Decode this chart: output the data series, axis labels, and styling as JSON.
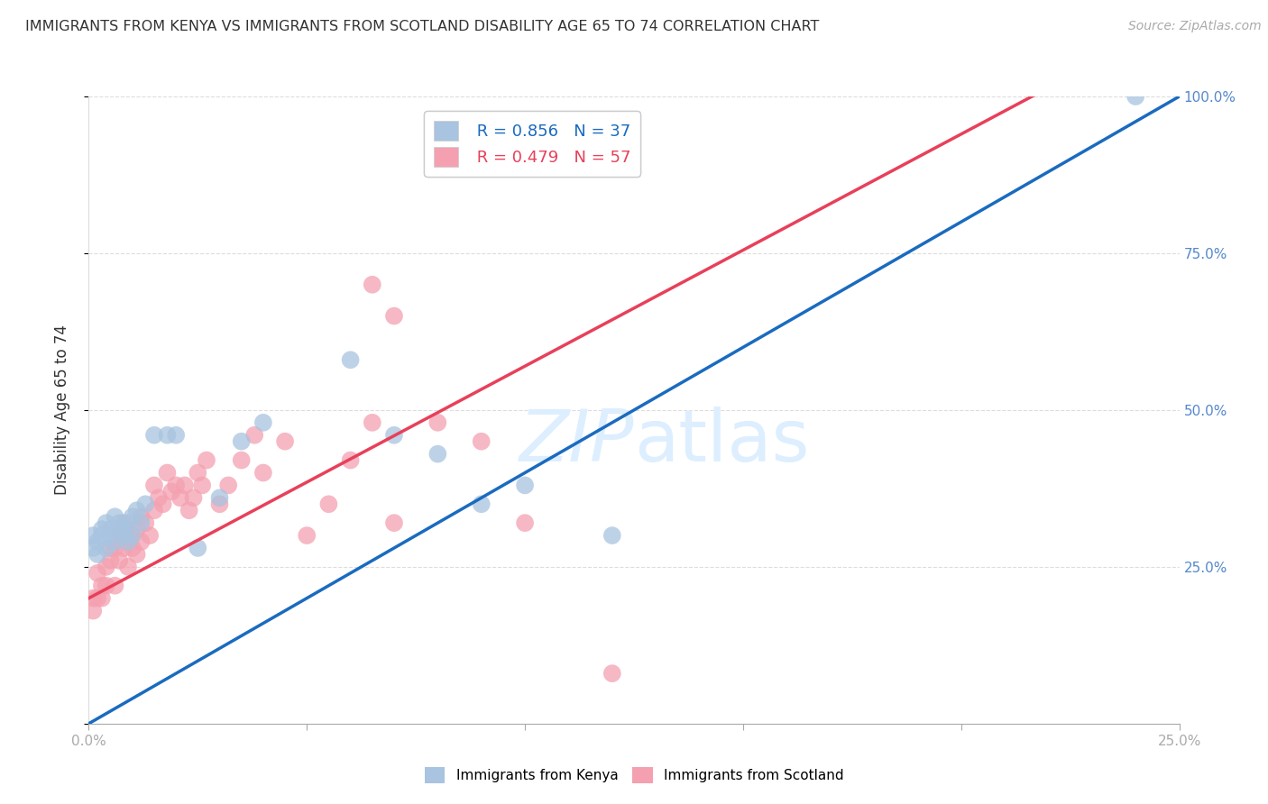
{
  "title": "IMMIGRANTS FROM KENYA VS IMMIGRANTS FROM SCOTLAND DISABILITY AGE 65 TO 74 CORRELATION CHART",
  "source": "Source: ZipAtlas.com",
  "ylabel": "Disability Age 65 to 74",
  "kenya_R": 0.856,
  "kenya_N": 37,
  "scotland_R": 0.479,
  "scotland_N": 57,
  "kenya_color": "#a8c4e0",
  "scotland_color": "#f4a0b0",
  "kenya_line_color": "#1a6bbf",
  "scotland_line_color": "#e8405a",
  "diagonal_color": "#cccccc",
  "background_color": "#ffffff",
  "grid_color": "#dddddd",
  "legend_label_kenya": "Immigrants from Kenya",
  "legend_label_scotland": "Immigrants from Scotland",
  "title_color": "#333333",
  "source_color": "#aaaaaa",
  "axis_label_color": "#333333",
  "right_axis_color": "#5588cc",
  "watermark_color": "#ddeeff",
  "xlim": [
    0.0,
    0.25
  ],
  "ylim": [
    0.0,
    1.0
  ],
  "kenya_line_x0": 0.0,
  "kenya_line_y0": 0.0,
  "kenya_line_x1": 0.25,
  "kenya_line_y1": 1.0,
  "scotland_line_x0": 0.0,
  "scotland_line_y0": 0.2,
  "scotland_line_x1": 0.1,
  "scotland_line_y1": 0.57,
  "kenya_scatter_x": [
    0.001,
    0.001,
    0.002,
    0.002,
    0.003,
    0.003,
    0.004,
    0.004,
    0.005,
    0.005,
    0.006,
    0.006,
    0.007,
    0.007,
    0.008,
    0.008,
    0.009,
    0.009,
    0.01,
    0.01,
    0.011,
    0.012,
    0.013,
    0.015,
    0.018,
    0.02,
    0.025,
    0.03,
    0.035,
    0.04,
    0.06,
    0.07,
    0.08,
    0.09,
    0.1,
    0.12,
    0.24
  ],
  "kenya_scatter_y": [
    0.28,
    0.3,
    0.27,
    0.29,
    0.3,
    0.31,
    0.32,
    0.28,
    0.31,
    0.3,
    0.33,
    0.29,
    0.31,
    0.32,
    0.3,
    0.31,
    0.32,
    0.29,
    0.33,
    0.3,
    0.34,
    0.32,
    0.35,
    0.46,
    0.46,
    0.46,
    0.28,
    0.36,
    0.45,
    0.48,
    0.58,
    0.46,
    0.43,
    0.35,
    0.38,
    0.3,
    1.0
  ],
  "scotland_scatter_x": [
    0.001,
    0.001,
    0.002,
    0.002,
    0.003,
    0.003,
    0.004,
    0.004,
    0.005,
    0.005,
    0.006,
    0.006,
    0.007,
    0.007,
    0.008,
    0.008,
    0.009,
    0.009,
    0.01,
    0.01,
    0.011,
    0.011,
    0.012,
    0.012,
    0.013,
    0.014,
    0.015,
    0.015,
    0.016,
    0.017,
    0.018,
    0.019,
    0.02,
    0.021,
    0.022,
    0.023,
    0.024,
    0.025,
    0.026,
    0.027,
    0.03,
    0.032,
    0.035,
    0.038,
    0.04,
    0.045,
    0.05,
    0.055,
    0.06,
    0.065,
    0.07,
    0.08,
    0.09,
    0.1,
    0.12,
    0.065,
    0.07
  ],
  "scotland_scatter_y": [
    0.18,
    0.2,
    0.2,
    0.24,
    0.2,
    0.22,
    0.22,
    0.25,
    0.26,
    0.28,
    0.22,
    0.28,
    0.26,
    0.3,
    0.28,
    0.32,
    0.25,
    0.29,
    0.28,
    0.3,
    0.27,
    0.31,
    0.29,
    0.33,
    0.32,
    0.3,
    0.34,
    0.38,
    0.36,
    0.35,
    0.4,
    0.37,
    0.38,
    0.36,
    0.38,
    0.34,
    0.36,
    0.4,
    0.38,
    0.42,
    0.35,
    0.38,
    0.42,
    0.46,
    0.4,
    0.45,
    0.3,
    0.35,
    0.42,
    0.48,
    0.32,
    0.48,
    0.45,
    0.32,
    0.08,
    0.7,
    0.65
  ]
}
